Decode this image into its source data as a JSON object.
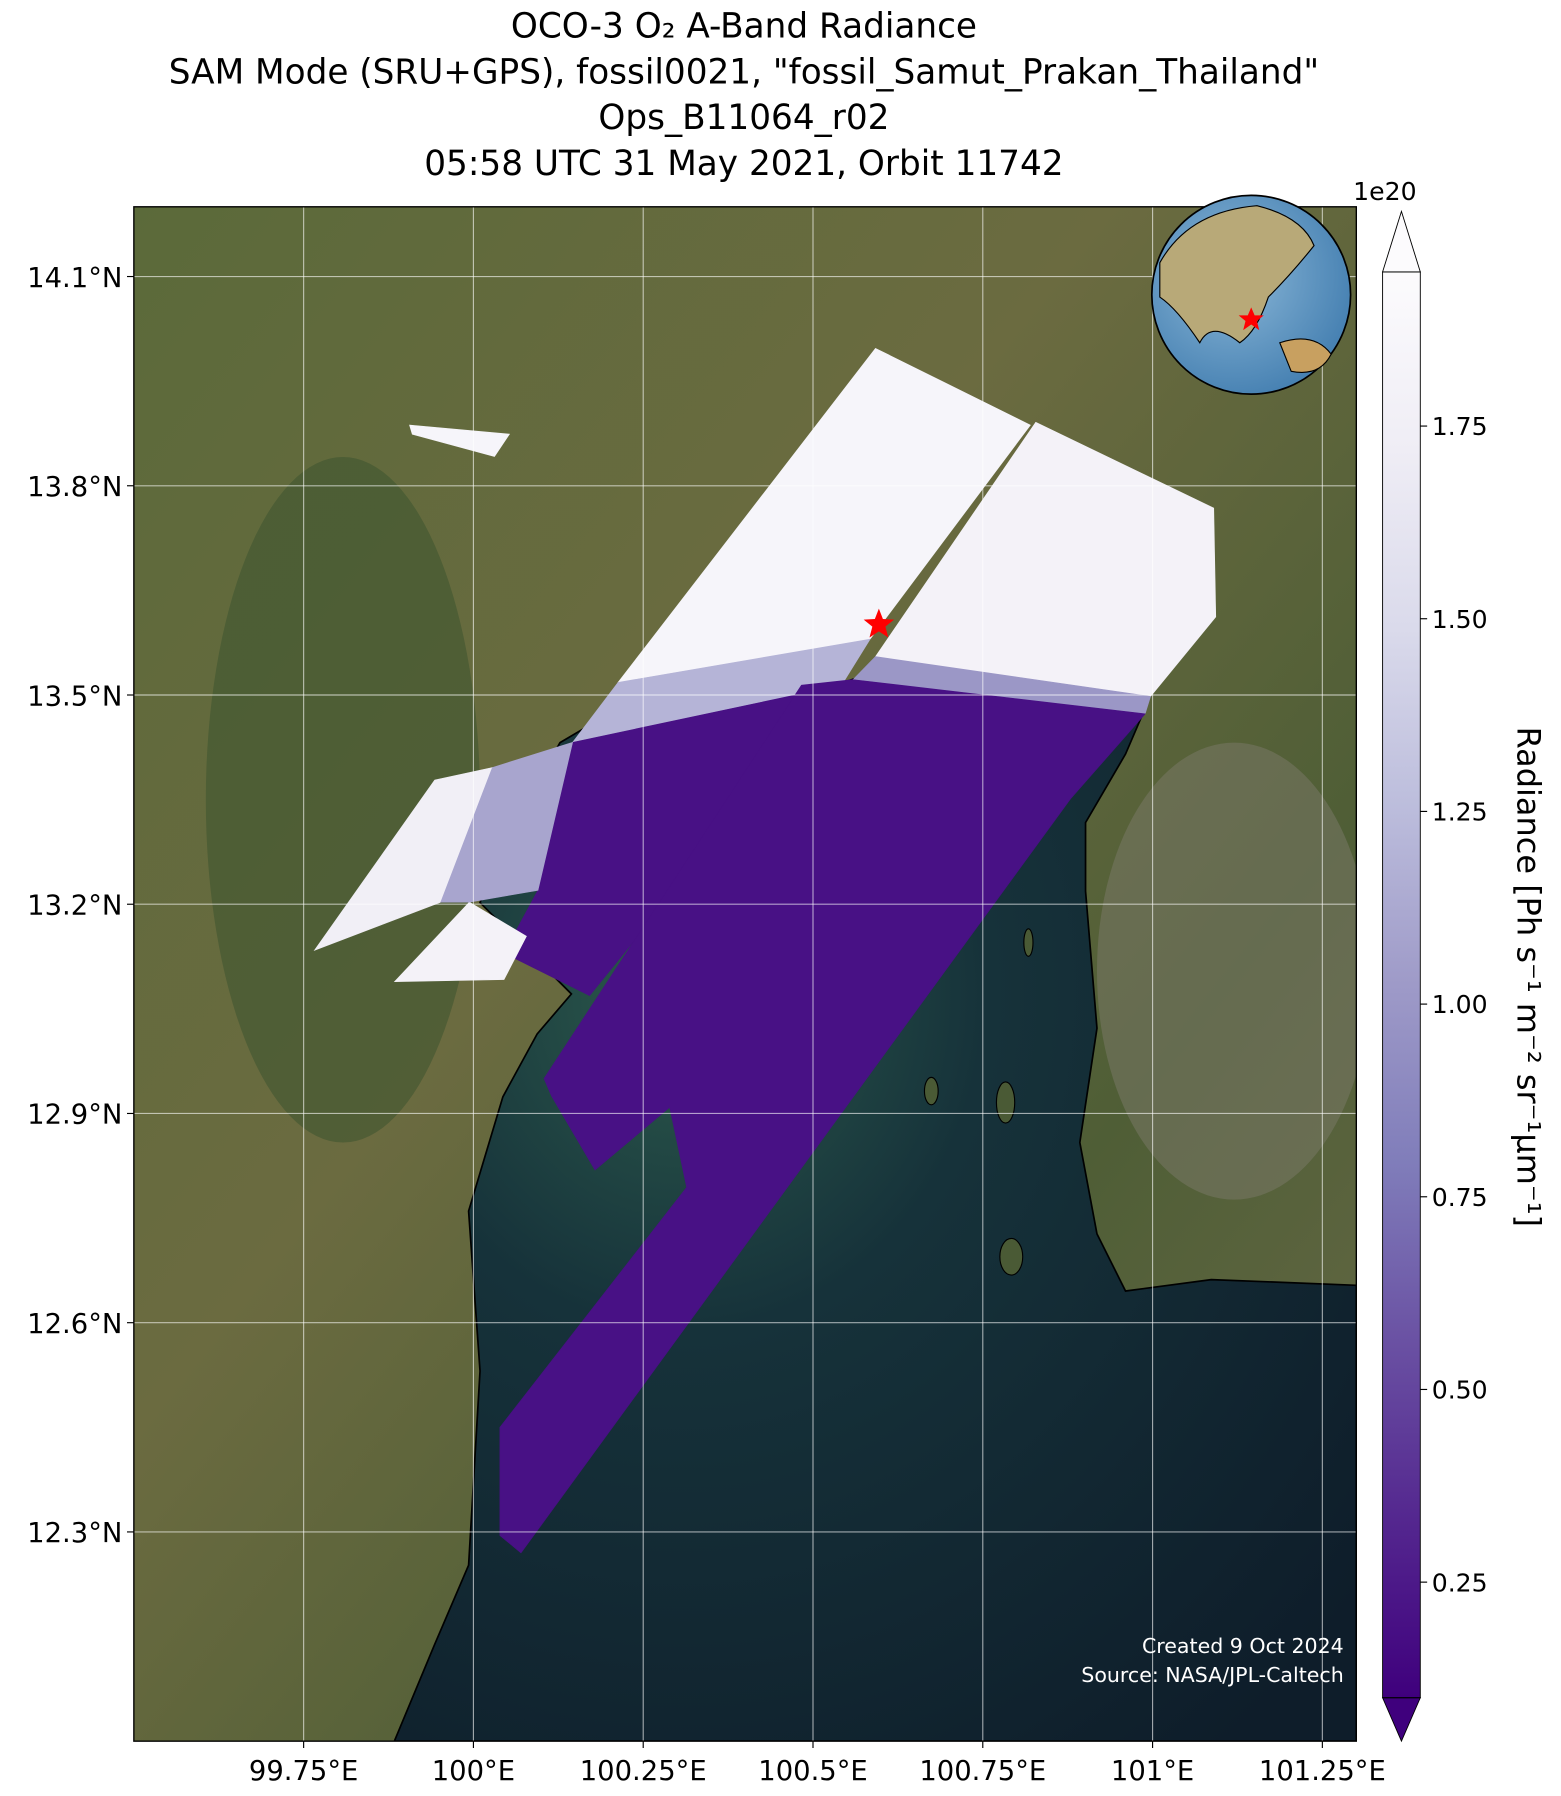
{
  "chart_data": {
    "type": "map",
    "title": [
      "OCO-3 O₂ A-Band Radiance",
      "SAM Mode (SRU+GPS), fossil0021, \"fossil_Samut_Prakan_Thailand\"",
      "Ops_B11064_r02",
      "05:58 UTC 31 May 2021, Orbit 11742"
    ],
    "xlim": [
      99.5,
      101.3
    ],
    "ylim": [
      12.0,
      14.2
    ],
    "xticks": [
      {
        "value": 99.75,
        "label": "99.75°E"
      },
      {
        "value": 100,
        "label": "100°E"
      },
      {
        "value": 100.25,
        "label": "100.25°E"
      },
      {
        "value": 100.5,
        "label": "100.5°E"
      },
      {
        "value": 100.75,
        "label": "100.75°E"
      },
      {
        "value": 101,
        "label": "101°E"
      },
      {
        "value": 101.25,
        "label": "101.25°E"
      }
    ],
    "yticks": [
      {
        "value": 12.3,
        "label": "12.3°N"
      },
      {
        "value": 12.6,
        "label": "12.6°N"
      },
      {
        "value": 12.9,
        "label": "12.9°N"
      },
      {
        "value": 13.2,
        "label": "13.2°N"
      },
      {
        "value": 13.5,
        "label": "13.5°N"
      },
      {
        "value": 13.8,
        "label": "13.8°N"
      },
      {
        "value": 14.1,
        "label": "14.1°N"
      }
    ],
    "grid": true,
    "colorbar": {
      "label": "Radiance [Ph s⁻¹ m⁻² sr⁻¹μm⁻¹]",
      "offset_text": "1e20",
      "clim": [
        0.1,
        1.95
      ],
      "ticks": [
        0.25,
        {
          "value": 0.5,
          "label": "0.50"
        },
        {
          "value": 0.75,
          "label": "0.75"
        },
        {
          "value": 1.0,
          "label": "1.00"
        },
        1.25,
        {
          "value": 1.5,
          "label": "1.50"
        },
        1.75
      ],
      "colormap": [
        "#3f007d",
        "#54278f",
        "#6a51a3",
        "#807dba",
        "#9e9ac8",
        "#bcbddc",
        "#dadaeb",
        "#efedf5",
        "#fcfbfd"
      ]
    },
    "swaths": [
      {
        "value": 1.85,
        "lonlat": [
          [
            100.592,
            13.997
          ],
          [
            100.82,
            13.887
          ],
          [
            100.584,
            13.58
          ],
          [
            100.213,
            13.518
          ]
        ]
      },
      {
        "value": 1.2,
        "lonlat": [
          [
            100.213,
            13.518
          ],
          [
            100.584,
            13.58
          ],
          [
            100.542,
            13.514
          ],
          [
            100.146,
            13.432
          ]
        ]
      },
      {
        "value": 0.2,
        "lonlat": [
          [
            100.146,
            13.432
          ],
          [
            100.542,
            13.514
          ],
          [
            100.171,
            13.069
          ],
          [
            100.045,
            13.13
          ],
          [
            100.095,
            13.22
          ]
        ]
      },
      {
        "value": 1.75,
        "lonlat": [
          [
            99.766,
            13.134
          ],
          [
            99.943,
            13.378
          ],
          [
            100.028,
            13.396
          ],
          [
            99.952,
            13.203
          ]
        ]
      },
      {
        "value": 1.8,
        "lonlat": [
          [
            99.884,
            13.089
          ],
          [
            99.994,
            13.203
          ],
          [
            100.078,
            13.154
          ],
          [
            100.045,
            13.092
          ]
        ]
      },
      {
        "value": 1.1,
        "lonlat": [
          [
            100.028,
            13.396
          ],
          [
            100.146,
            13.432
          ],
          [
            100.095,
            13.22
          ],
          [
            99.994,
            13.203
          ],
          [
            99.952,
            13.203
          ]
        ]
      },
      {
        "value": 1.8,
        "lonlat": [
          [
            100.828,
            13.891
          ],
          [
            101.09,
            13.768
          ],
          [
            101.093,
            13.612
          ],
          [
            100.997,
            13.498
          ],
          [
            100.651,
            13.514
          ],
          [
            100.592,
            13.555
          ]
        ]
      },
      {
        "value": 1.0,
        "lonlat": [
          [
            100.592,
            13.555
          ],
          [
            100.997,
            13.498
          ],
          [
            100.989,
            13.473
          ],
          [
            100.559,
            13.522
          ]
        ]
      },
      {
        "value": 0.2,
        "lonlat": [
          [
            100.559,
            13.522
          ],
          [
            100.989,
            13.473
          ],
          [
            100.879,
            13.351
          ],
          [
            100.07,
            12.27
          ],
          [
            100.039,
            12.295
          ],
          [
            100.039,
            12.45
          ],
          [
            100.314,
            12.794
          ],
          [
            100.289,
            12.909
          ],
          [
            100.179,
            12.819
          ],
          [
            100.115,
            12.925
          ],
          [
            100.104,
            12.95
          ],
          [
            100.483,
            13.514
          ]
        ]
      },
      {
        "value": 1.85,
        "lonlat": [
          [
            99.906,
            13.887
          ],
          [
            100.053,
            13.874
          ],
          [
            100.031,
            13.842
          ],
          [
            99.91,
            13.874
          ]
        ]
      }
    ],
    "site": {
      "lon": 100.597,
      "lat": 13.601
    },
    "annotations": [
      "Created 9 Oct 2024",
      "Source: NASA/JPL-Caltech"
    ]
  }
}
